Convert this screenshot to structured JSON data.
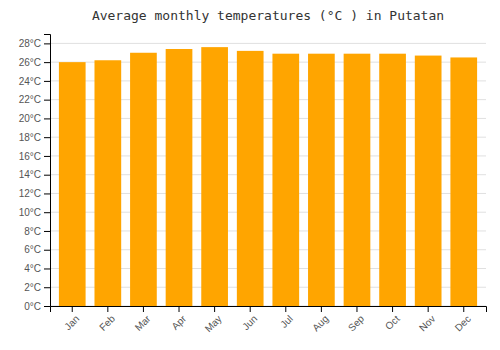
{
  "chart_data": {
    "type": "bar",
    "title": "Average monthly temperatures (°C ) in Putatan",
    "categories": [
      "Jan",
      "Feb",
      "Mar",
      "Apr",
      "May",
      "Jun",
      "Jul",
      "Aug",
      "Sep",
      "Oct",
      "Nov",
      "Dec"
    ],
    "values": [
      26.0,
      26.2,
      27.0,
      27.4,
      27.6,
      27.2,
      26.9,
      26.9,
      26.9,
      26.9,
      26.7,
      26.5
    ],
    "color": "#FFA500",
    "ylim": [
      0,
      29
    ],
    "yticks": [
      {
        "value": 0,
        "label": "0°C"
      },
      {
        "value": 2,
        "label": "2°C"
      },
      {
        "value": 4,
        "label": "4°C"
      },
      {
        "value": 6,
        "label": "6°C"
      },
      {
        "value": 8,
        "label": "8°C"
      },
      {
        "value": 10,
        "label": "10°C"
      },
      {
        "value": 12,
        "label": "12°C"
      },
      {
        "value": 14,
        "label": "14°C"
      },
      {
        "value": 16,
        "label": "16°C"
      },
      {
        "value": 18,
        "label": "18°C"
      },
      {
        "value": 20,
        "label": "20°C"
      },
      {
        "value": 22,
        "label": "22°C"
      },
      {
        "value": 24,
        "label": "24°C"
      },
      {
        "value": 26,
        "label": "26°C"
      },
      {
        "value": 28,
        "label": "28°C"
      }
    ],
    "grid": true
  }
}
